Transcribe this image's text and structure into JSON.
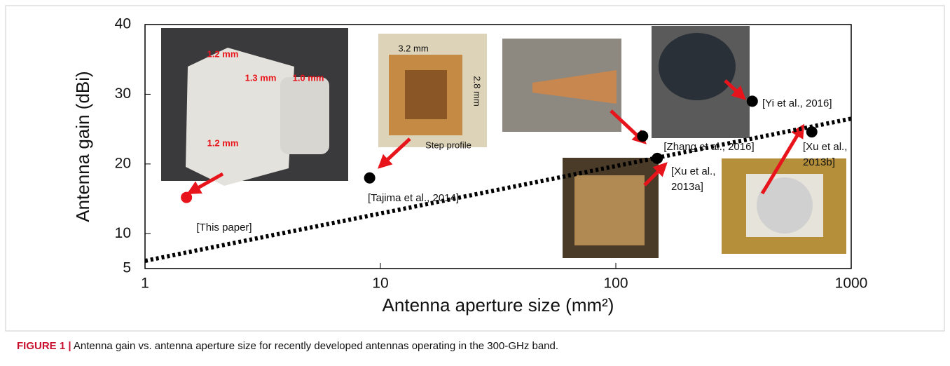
{
  "chart_data": {
    "type": "scatter",
    "xlabel": "Antenna aperture size (mm²)",
    "ylabel": "Antenna gain (dBi)",
    "xscale": "log",
    "xlim": [
      1,
      1000
    ],
    "xticks": [
      1,
      10,
      100,
      1000
    ],
    "ylim": [
      5,
      40
    ],
    "yticks": [
      5,
      10,
      20,
      30,
      40
    ],
    "x": [
      1.5,
      9,
      130,
      150,
      380,
      680
    ],
    "values": [
      15.2,
      18,
      24,
      20.8,
      29,
      24.6
    ],
    "colors": [
      "#e8141b",
      "#000000",
      "#000000",
      "#000000",
      "#000000",
      "#000000"
    ],
    "labels": [
      [
        "[This paper]"
      ],
      [
        "[Tajima et al., 2014]"
      ],
      [
        "[Zhang et al., 2016]"
      ],
      [
        "[Xu et al.,",
        "2013a]"
      ],
      [
        "[Yi et al., 2016]"
      ],
      [
        "[Xu et al.,",
        "2013b]"
      ]
    ],
    "trend": {
      "x": [
        1,
        1000
      ],
      "values": [
        6.1,
        26.5
      ],
      "color": "#000000"
    },
    "photo_notes": [
      [
        "1.2 mm",
        "1.3 mm",
        "1.0 mm",
        "1.2 mm"
      ],
      [
        "3.2 mm",
        "2.8 mm",
        "Step profile"
      ]
    ]
  },
  "caption": {
    "label": "FIGURE 1 |",
    "text": " Antenna gain vs. antenna aperture size for recently developed antennas operating in the 300-GHz band."
  }
}
